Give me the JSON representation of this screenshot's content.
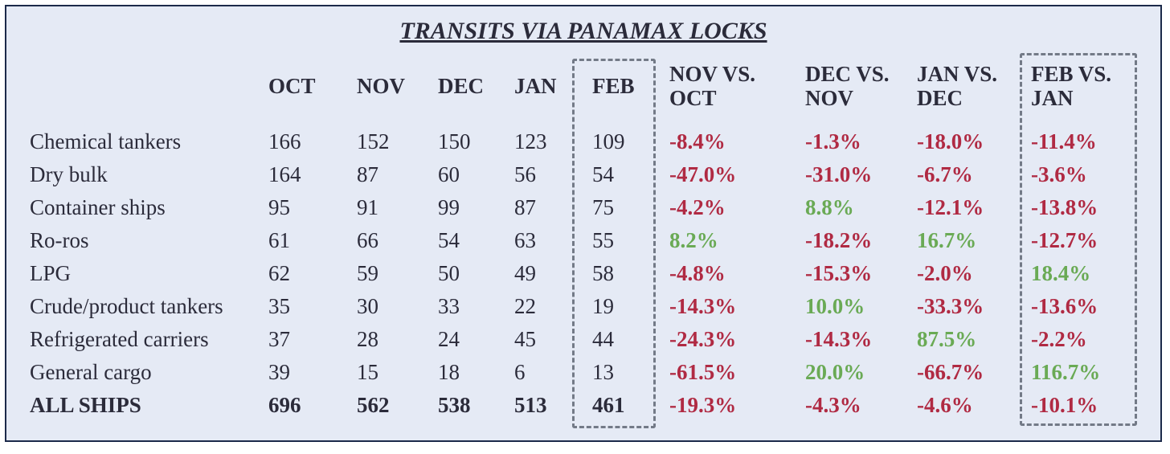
{
  "chart_data": {
    "type": "table",
    "title": "TRANSITS VIA PANAMAX LOCKS",
    "columns": [
      {
        "line1": "OCT",
        "line2": ""
      },
      {
        "line1": "NOV",
        "line2": ""
      },
      {
        "line1": "DEC",
        "line2": ""
      },
      {
        "line1": "JAN",
        "line2": ""
      },
      {
        "line1": "FEB",
        "line2": ""
      },
      {
        "line1": "NOV VS.",
        "line2": "OCT"
      },
      {
        "line1": "DEC VS.",
        "line2": "NOV"
      },
      {
        "line1": "JAN VS.",
        "line2": "DEC"
      },
      {
        "line1": "FEB VS.",
        "line2": "JAN"
      }
    ],
    "rows": [
      {
        "label": "Chemical tankers",
        "bold": false,
        "values": [
          "166",
          "152",
          "150",
          "123",
          "109"
        ],
        "changes": [
          "-8.4%",
          "-1.3%",
          "-18.0%",
          "-11.4%"
        ]
      },
      {
        "label": "Dry bulk",
        "bold": false,
        "values": [
          "164",
          "87",
          "60",
          "56",
          "54"
        ],
        "changes": [
          "-47.0%",
          "-31.0%",
          "-6.7%",
          "-3.6%"
        ]
      },
      {
        "label": "Container ships",
        "bold": false,
        "values": [
          "95",
          "91",
          "99",
          "87",
          "75"
        ],
        "changes": [
          "-4.2%",
          "8.8%",
          "-12.1%",
          "-13.8%"
        ]
      },
      {
        "label": "Ro-ros",
        "bold": false,
        "values": [
          "61",
          "66",
          "54",
          "63",
          "55"
        ],
        "changes": [
          "8.2%",
          "-18.2%",
          "16.7%",
          "-12.7%"
        ]
      },
      {
        "label": "LPG",
        "bold": false,
        "values": [
          "62",
          "59",
          "50",
          "49",
          "58"
        ],
        "changes": [
          "-4.8%",
          "-15.3%",
          "-2.0%",
          "18.4%"
        ]
      },
      {
        "label": "Crude/product tankers",
        "bold": false,
        "values": [
          "35",
          "30",
          "33",
          "22",
          "19"
        ],
        "changes": [
          "-14.3%",
          "10.0%",
          "-33.3%",
          "-13.6%"
        ]
      },
      {
        "label": "Refrigerated carriers",
        "bold": false,
        "values": [
          "37",
          "28",
          "24",
          "45",
          "44"
        ],
        "changes": [
          "-24.3%",
          "-14.3%",
          "87.5%",
          "-2.2%"
        ]
      },
      {
        "label": "General cargo",
        "bold": false,
        "values": [
          "39",
          "15",
          "18",
          "6",
          "13"
        ],
        "changes": [
          "-61.5%",
          "20.0%",
          "-66.7%",
          "116.7%"
        ]
      },
      {
        "label": "ALL SHIPS",
        "bold": true,
        "values": [
          "696",
          "562",
          "538",
          "513",
          "461"
        ],
        "changes": [
          "-19.3%",
          "-4.3%",
          "-4.6%",
          "-10.1%"
        ]
      }
    ],
    "highlighted_columns": [
      "FEB",
      "FEB VS. JAN"
    ],
    "colors": {
      "negative": "#b02a43",
      "positive": "#6aaa55",
      "text": "#2b2b3a",
      "background": "#e5eaf5",
      "border": "#1c2a4a"
    }
  }
}
